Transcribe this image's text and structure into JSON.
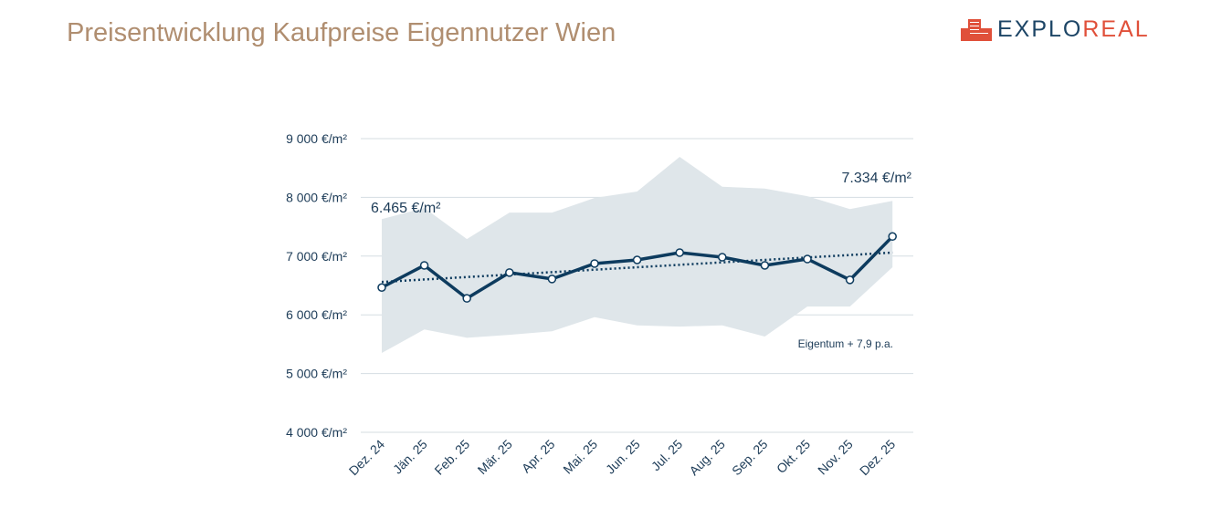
{
  "title": "Preisentwicklung Kaufpreise Eigennutzer Wien",
  "logo": {
    "part1": "EXPLO",
    "part2": "REAL",
    "colors": {
      "dark": "#1d4566",
      "accent": "#e0503a"
    }
  },
  "chart_data": {
    "type": "line",
    "categories": [
      "Dez. 24",
      "Jän. 25",
      "Feb. 25",
      "Mär. 25",
      "Apr. 25",
      "Mai. 25",
      "Jun. 25",
      "Jul. 25",
      "Aug. 25",
      "Sep. 25",
      "Okt. 25",
      "Nov. 25",
      "Dez. 25"
    ],
    "values": [
      6465,
      6842,
      6280,
      6720,
      6610,
      6873,
      6935,
      7059,
      6981,
      6842,
      6950,
      6595,
      7334
    ],
    "band_upper": [
      7630,
      7820,
      7290,
      7740,
      7740,
      7990,
      8100,
      8690,
      8180,
      8150,
      8020,
      7800,
      7940
    ],
    "band_lower": [
      5350,
      5750,
      5610,
      5660,
      5720,
      5960,
      5820,
      5800,
      5820,
      5630,
      6140,
      6140,
      6810
    ],
    "trend": [
      6560,
      7060
    ],
    "ylim": [
      4000,
      9000
    ],
    "yticks": [
      {
        "v": 9000,
        "label": "9 000 €/m²"
      },
      {
        "v": 8000,
        "label": "8 000 €/m²"
      },
      {
        "v": 7000,
        "label": "7 000 €/m²"
      },
      {
        "v": 6000,
        "label": "6 000 €/m²"
      },
      {
        "v": 5000,
        "label": "5 000 €/m²"
      },
      {
        "v": 4000,
        "label": "4 000 €/m²"
      }
    ],
    "grid": true,
    "annotations": {
      "start": "6.465 €/m²",
      "end": "7.334 €/m²",
      "trend_label": "Eigentum + 7,9 p.a."
    },
    "colors": {
      "line": "#0d3b5e",
      "band": "#dfe6ea",
      "grid": "#d5dde2"
    }
  }
}
